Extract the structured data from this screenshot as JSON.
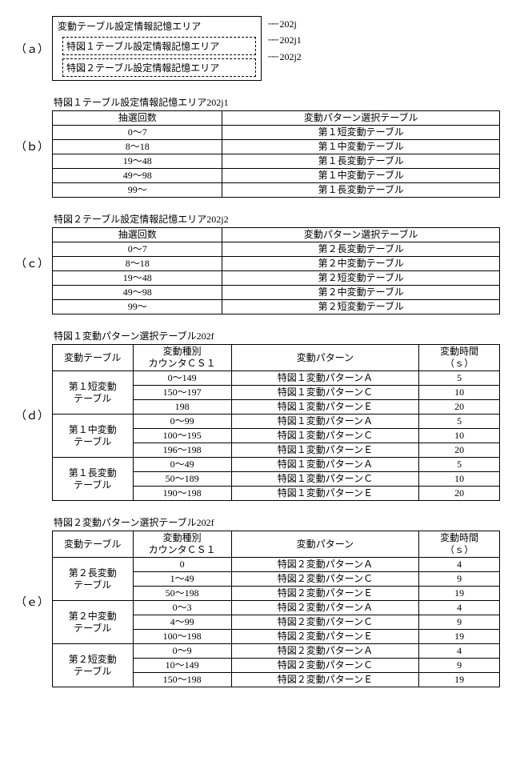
{
  "a": {
    "label": "（ａ）",
    "box_title": "変動テーブル設定情報記憶エリア",
    "sub1": "特図１テーブル設定情報記憶エリア",
    "sub2": "特図２テーブル設定情報記憶エリア",
    "ref_main": "202j",
    "ref_sub1": "202j1",
    "ref_sub2": "202j2"
  },
  "b": {
    "label": "（ｂ）",
    "caption": "特図１テーブル設定情報記憶エリア202j1",
    "head1": "抽選回数",
    "head2": "変動パターン選択テーブル",
    "rows": [
      [
        "0～7",
        "第１短変動テーブル"
      ],
      [
        "8～18",
        "第１中変動テーブル"
      ],
      [
        "19～48",
        "第１長変動テーブル"
      ],
      [
        "49～98",
        "第１中変動テーブル"
      ],
      [
        "99～",
        "第１長変動テーブル"
      ]
    ]
  },
  "c": {
    "label": "（ｃ）",
    "caption": "特図２テーブル設定情報記憶エリア202j2",
    "head1": "抽選回数",
    "head2": "変動パターン選択テーブル",
    "rows": [
      [
        "0～7",
        "第２長変動テーブル"
      ],
      [
        "8～18",
        "第２中変動テーブル"
      ],
      [
        "19～48",
        "第２短変動テーブル"
      ],
      [
        "49～98",
        "第２中変動テーブル"
      ],
      [
        "99～",
        "第２短変動テーブル"
      ]
    ]
  },
  "d": {
    "label": "（ｄ）",
    "caption": "特図１変動パターン選択テーブル202f",
    "h1": "変動テーブル",
    "h2a": "変動種別",
    "h2b": "カウンタＣＳ１",
    "h3": "変動パターン",
    "h4a": "変動時間",
    "h4b": "（ｓ）",
    "groups": [
      {
        "name_a": "第１短変動",
        "name_b": "テーブル",
        "rows": [
          [
            "0～149",
            "特図１変動パターンＡ",
            "5"
          ],
          [
            "150～197",
            "特図１変動パターンＣ",
            "10"
          ],
          [
            "198",
            "特図１変動パターンＥ",
            "20"
          ]
        ]
      },
      {
        "name_a": "第１中変動",
        "name_b": "テーブル",
        "rows": [
          [
            "0～99",
            "特図１変動パターンＡ",
            "5"
          ],
          [
            "100～195",
            "特図１変動パターンＣ",
            "10"
          ],
          [
            "196～198",
            "特図１変動パターンＥ",
            "20"
          ]
        ]
      },
      {
        "name_a": "第１長変動",
        "name_b": "テーブル",
        "rows": [
          [
            "0～49",
            "特図１変動パターンＡ",
            "5"
          ],
          [
            "50～189",
            "特図１変動パターンＣ",
            "10"
          ],
          [
            "190～198",
            "特図１変動パターンＥ",
            "20"
          ]
        ]
      }
    ]
  },
  "e": {
    "label": "（ｅ）",
    "caption": "特図２変動パターン選択テーブル202f",
    "h1": "変動テーブル",
    "h2a": "変動種別",
    "h2b": "カウンタＣＳ１",
    "h3": "変動パターン",
    "h4a": "変動時間",
    "h4b": "（ｓ）",
    "groups": [
      {
        "name_a": "第２長変動",
        "name_b": "テーブル",
        "rows": [
          [
            "0",
            "特図２変動パターンＡ",
            "4"
          ],
          [
            "1～49",
            "特図２変動パターンＣ",
            "9"
          ],
          [
            "50～198",
            "特図２変動パターンＥ",
            "19"
          ]
        ]
      },
      {
        "name_a": "第２中変動",
        "name_b": "テーブル",
        "rows": [
          [
            "0～3",
            "特図２変動パターンＡ",
            "4"
          ],
          [
            "4～99",
            "特図２変動パターンＣ",
            "9"
          ],
          [
            "100～198",
            "特図２変動パターンＥ",
            "19"
          ]
        ]
      },
      {
        "name_a": "第２短変動",
        "name_b": "テーブル",
        "rows": [
          [
            "0～9",
            "特図２変動パターンＡ",
            "4"
          ],
          [
            "10～149",
            "特図２変動パターンＣ",
            "9"
          ],
          [
            "150～198",
            "特図２変動パターンＥ",
            "19"
          ]
        ]
      }
    ]
  }
}
